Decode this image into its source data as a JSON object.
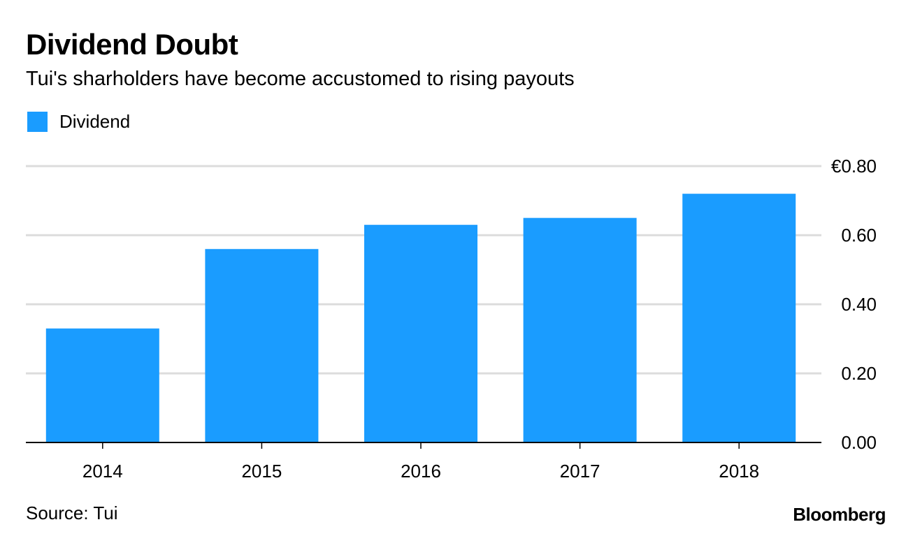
{
  "header": {
    "title": "Dividend Doubt",
    "subtitle": "Tui's sharholders have become accustomed to rising payouts"
  },
  "legend": {
    "label": "Dividend"
  },
  "colors": {
    "bar": "#1a9cff",
    "grid": "#dcdcdc",
    "axis": "#000000"
  },
  "chart_data": {
    "type": "bar",
    "title": "Dividend Doubt",
    "subtitle": "Tui's sharholders have become accustomed to rising payouts",
    "categories": [
      "2014",
      "2015",
      "2016",
      "2017",
      "2018"
    ],
    "series": [
      {
        "name": "Dividend",
        "values": [
          0.33,
          0.56,
          0.63,
          0.65,
          0.72
        ]
      }
    ],
    "ylim": [
      0,
      0.8
    ],
    "yticks": [
      0.0,
      0.2,
      0.4,
      0.6,
      0.8
    ],
    "ytick_labels": [
      "0.00",
      "0.20",
      "0.40",
      "0.60",
      "€0.80"
    ],
    "xlabel": "",
    "ylabel": "",
    "grid": true,
    "legend_position": "top-left",
    "y_axis_side": "right"
  },
  "footer": {
    "source": "Source: Tui",
    "brand": "Bloomberg"
  }
}
